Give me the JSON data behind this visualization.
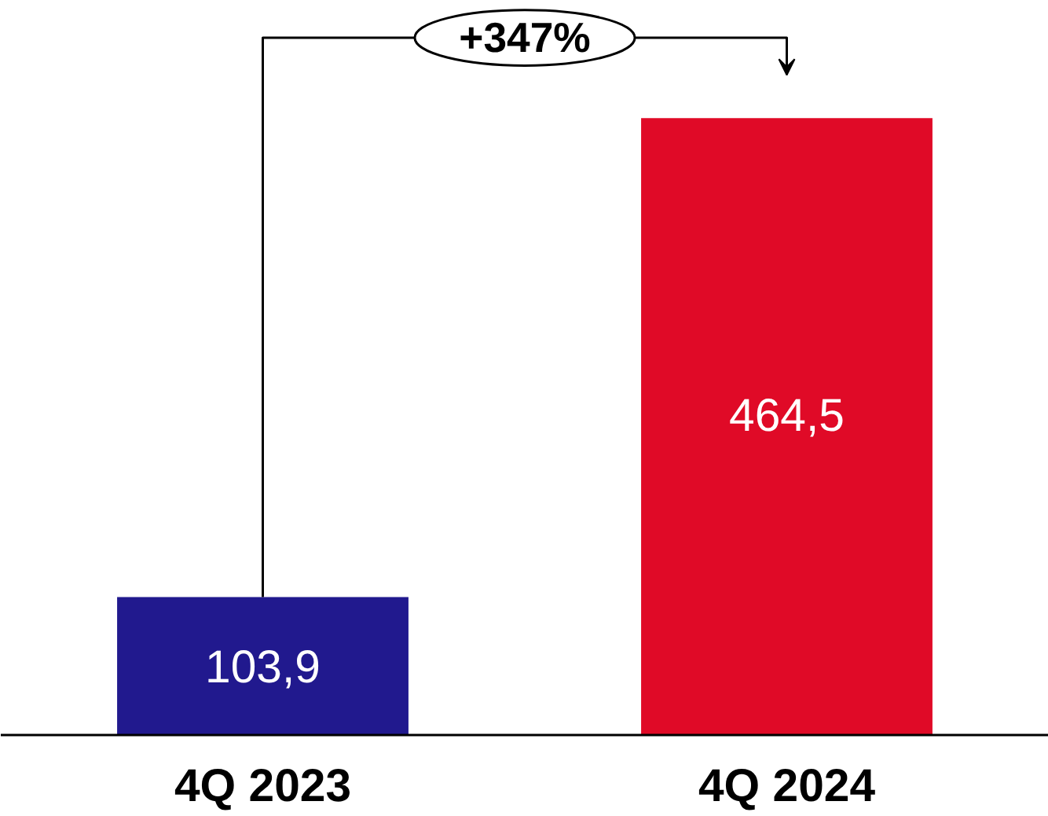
{
  "chart_data": {
    "type": "bar",
    "categories": [
      "4Q 2023",
      "4Q 2024"
    ],
    "values": [
      103.9,
      464.5
    ],
    "colors": [
      "#21198e",
      "#e00a27"
    ],
    "value_labels": [
      "103,9",
      "464,5"
    ],
    "annotations": [
      "+347%"
    ],
    "grid": false
  }
}
